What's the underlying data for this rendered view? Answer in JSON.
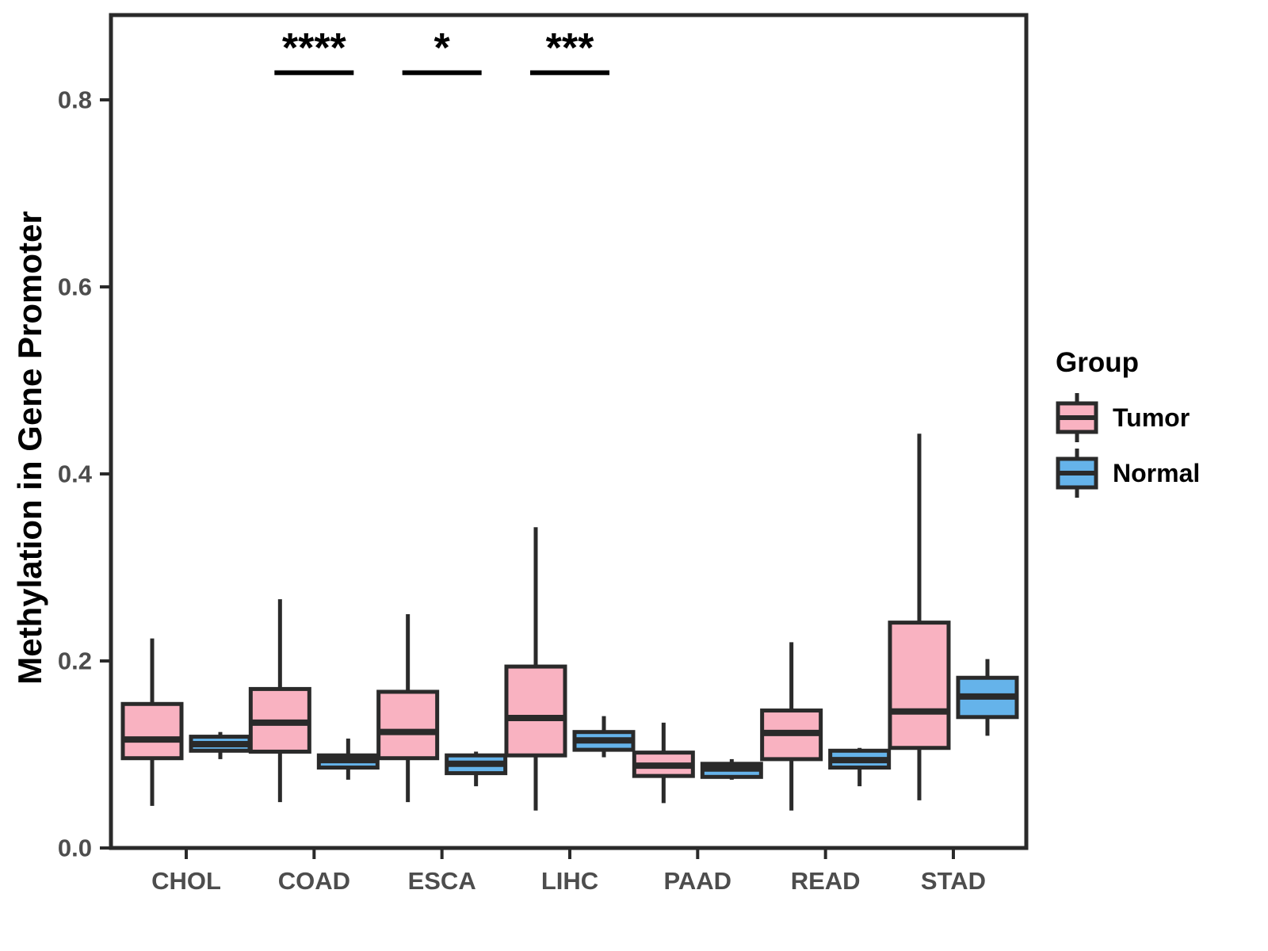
{
  "chart_data": {
    "type": "boxplot",
    "title": "",
    "xlabel": "",
    "ylabel": "Methylation in Gene Promoter",
    "categories": [
      "CHOL",
      "COAD",
      "ESCA",
      "LIHC",
      "PAAD",
      "READ",
      "STAD"
    ],
    "y_ticks": [
      {
        "value": 0.0,
        "label": "0.0"
      },
      {
        "value": 0.2,
        "label": "0.2"
      },
      {
        "value": 0.4,
        "label": "0.4"
      },
      {
        "value": 0.6,
        "label": "0.6"
      },
      {
        "value": 0.8,
        "label": "0.8"
      }
    ],
    "ylim": [
      0.0,
      0.89
    ],
    "grid": "off",
    "legend": {
      "title": "Group",
      "position": "right",
      "entries": [
        {
          "label": "Tumor",
          "color": "#F9B2C1"
        },
        {
          "label": "Normal",
          "color": "#65B3EA"
        }
      ]
    },
    "series": [
      {
        "name": "Tumor",
        "color": "#F9B2C1",
        "boxes": [
          {
            "category": "CHOL",
            "min": 0.045,
            "q1": 0.096,
            "median": 0.116,
            "q3": 0.154,
            "max": 0.224
          },
          {
            "category": "COAD",
            "min": 0.049,
            "q1": 0.103,
            "median": 0.134,
            "q3": 0.17,
            "max": 0.266
          },
          {
            "category": "ESCA",
            "min": 0.049,
            "q1": 0.096,
            "median": 0.124,
            "q3": 0.167,
            "max": 0.25
          },
          {
            "category": "LIHC",
            "min": 0.04,
            "q1": 0.099,
            "median": 0.139,
            "q3": 0.194,
            "max": 0.343
          },
          {
            "category": "PAAD",
            "min": 0.048,
            "q1": 0.077,
            "median": 0.088,
            "q3": 0.102,
            "max": 0.134
          },
          {
            "category": "READ",
            "min": 0.04,
            "q1": 0.095,
            "median": 0.123,
            "q3": 0.147,
            "max": 0.22
          },
          {
            "category": "STAD",
            "min": 0.051,
            "q1": 0.107,
            "median": 0.146,
            "q3": 0.241,
            "max": 0.443
          }
        ]
      },
      {
        "name": "Normal",
        "color": "#65B3EA",
        "boxes": [
          {
            "category": "CHOL",
            "min": 0.095,
            "q1": 0.104,
            "median": 0.111,
            "q3": 0.119,
            "max": 0.124
          },
          {
            "category": "COAD",
            "min": 0.073,
            "q1": 0.086,
            "median": 0.094,
            "q3": 0.099,
            "max": 0.117
          },
          {
            "category": "ESCA",
            "min": 0.066,
            "q1": 0.08,
            "median": 0.09,
            "q3": 0.099,
            "max": 0.103
          },
          {
            "category": "LIHC",
            "min": 0.097,
            "q1": 0.105,
            "median": 0.115,
            "q3": 0.124,
            "max": 0.141
          },
          {
            "category": "PAAD",
            "min": 0.073,
            "q1": 0.076,
            "median": 0.085,
            "q3": 0.09,
            "max": 0.095
          },
          {
            "category": "READ",
            "min": 0.066,
            "q1": 0.086,
            "median": 0.094,
            "q3": 0.104,
            "max": 0.107
          },
          {
            "category": "STAD",
            "min": 0.12,
            "q1": 0.14,
            "median": 0.162,
            "q3": 0.182,
            "max": 0.202
          }
        ]
      }
    ],
    "significance": {
      "bar_value": 0.829,
      "marks": [
        {
          "category": "COAD",
          "label": "****"
        },
        {
          "category": "ESCA",
          "label": "*"
        },
        {
          "category": "LIHC",
          "label": "***"
        }
      ]
    },
    "colors": {
      "axis": "#2A2A2A",
      "tick_text": "#4D4D4D",
      "title_text": "#000000"
    }
  }
}
